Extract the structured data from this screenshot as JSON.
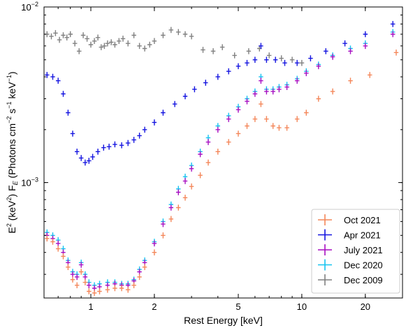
{
  "chart_data": {
    "type": "scatter",
    "title": "",
    "xlabel": "Rest Energy [keV]",
    "ylabel_parts": {
      "base1": "E",
      "sup1": "2",
      "mid1": " (keV",
      "sup2": "2",
      "mid2": ") F",
      "sub1": "E",
      "mid3": "  (Photons cm",
      "sup3": "−2",
      "mid4": " s",
      "sup4": "−1",
      "mid5": " keV",
      "sup5": "−1",
      "end": ")"
    },
    "x_scale": "log",
    "y_scale": "log",
    "xlim": [
      0.6,
      30
    ],
    "ylim": [
      0.00022,
      0.01
    ],
    "x_ticks": [
      {
        "value": 1,
        "label": "1"
      },
      {
        "value": 2,
        "label": "2"
      },
      {
        "value": 5,
        "label": "5"
      },
      {
        "value": 10,
        "label": "10"
      },
      {
        "value": 20,
        "label": "20"
      }
    ],
    "y_ticks": [
      {
        "value": 0.001,
        "label_base": "10",
        "label_exp": "−3"
      },
      {
        "value": 0.01,
        "label_base": "10",
        "label_exp": "−2"
      }
    ],
    "grid": false,
    "legend_position": "bottom-right",
    "series": [
      {
        "name": "Oct 2021",
        "color": "#f4875a",
        "points": [
          [
            0.62,
            0.00048
          ],
          [
            0.66,
            0.00046
          ],
          [
            0.7,
            0.00042
          ],
          [
            0.74,
            0.00038
          ],
          [
            0.78,
            0.00033
          ],
          [
            0.82,
            0.00028
          ],
          [
            0.86,
            0.00026
          ],
          [
            0.9,
            0.00031
          ],
          [
            0.94,
            0.00027
          ],
          [
            0.98,
            0.00024
          ],
          [
            1.04,
            0.000235
          ],
          [
            1.1,
            0.00024
          ],
          [
            1.2,
            0.000245
          ],
          [
            1.3,
            0.00025
          ],
          [
            1.4,
            0.00025
          ],
          [
            1.5,
            0.000245
          ],
          [
            1.6,
            0.00026
          ],
          [
            1.7,
            0.00029
          ],
          [
            1.8,
            0.00033
          ],
          [
            2.0,
            0.0004
          ],
          [
            2.2,
            0.0005
          ],
          [
            2.4,
            0.00062
          ],
          [
            2.6,
            0.00072
          ],
          [
            2.8,
            0.00082
          ],
          [
            3.0,
            0.00095
          ],
          [
            3.3,
            0.0011
          ],
          [
            3.6,
            0.0013
          ],
          [
            4.0,
            0.0015
          ],
          [
            4.5,
            0.0017
          ],
          [
            5.0,
            0.0019
          ],
          [
            5.5,
            0.0021
          ],
          [
            6.0,
            0.0023
          ],
          [
            6.4,
            0.0028
          ],
          [
            6.8,
            0.0023
          ],
          [
            7.3,
            0.0021
          ],
          [
            7.8,
            0.00205
          ],
          [
            8.5,
            0.00205
          ],
          [
            9.5,
            0.0023
          ],
          [
            10.5,
            0.0025
          ],
          [
            12.0,
            0.003
          ],
          [
            14.0,
            0.0033
          ],
          [
            17.0,
            0.0038
          ],
          [
            21.0,
            0.0041
          ],
          [
            28.0,
            0.0055
          ]
        ]
      },
      {
        "name": "Apr 2021",
        "color": "#1414e0",
        "points": [
          [
            0.62,
            0.0041
          ],
          [
            0.66,
            0.004
          ],
          [
            0.7,
            0.0038
          ],
          [
            0.74,
            0.0032
          ],
          [
            0.78,
            0.0025
          ],
          [
            0.82,
            0.0019
          ],
          [
            0.86,
            0.0015
          ],
          [
            0.9,
            0.00138
          ],
          [
            0.94,
            0.0013
          ],
          [
            0.98,
            0.00133
          ],
          [
            1.02,
            0.0014
          ],
          [
            1.08,
            0.0015
          ],
          [
            1.15,
            0.00158
          ],
          [
            1.22,
            0.0016
          ],
          [
            1.3,
            0.00165
          ],
          [
            1.4,
            0.00163
          ],
          [
            1.5,
            0.00168
          ],
          [
            1.6,
            0.00175
          ],
          [
            1.7,
            0.00185
          ],
          [
            1.8,
            0.002
          ],
          [
            2.0,
            0.0022
          ],
          [
            2.2,
            0.0025
          ],
          [
            2.5,
            0.0028
          ],
          [
            2.8,
            0.0031
          ],
          [
            3.1,
            0.0034
          ],
          [
            3.5,
            0.0037
          ],
          [
            4.0,
            0.004
          ],
          [
            4.5,
            0.0043
          ],
          [
            5.0,
            0.0046
          ],
          [
            5.5,
            0.0048
          ],
          [
            6.0,
            0.005
          ],
          [
            6.4,
            0.006
          ],
          [
            6.8,
            0.005
          ],
          [
            7.5,
            0.005
          ],
          [
            8.3,
            0.0048
          ],
          [
            9.5,
            0.0048
          ],
          [
            11.0,
            0.0051
          ],
          [
            13.0,
            0.0056
          ],
          [
            16.0,
            0.0062
          ],
          [
            20.0,
            0.007
          ],
          [
            27.0,
            0.008
          ]
        ]
      },
      {
        "name": "July 2021",
        "color": "#a80fc2",
        "points": [
          [
            0.62,
            0.0005
          ],
          [
            0.66,
            0.00048
          ],
          [
            0.7,
            0.00045
          ],
          [
            0.74,
            0.0004
          ],
          [
            0.78,
            0.00035
          ],
          [
            0.82,
            0.0003
          ],
          [
            0.86,
            0.00029
          ],
          [
            0.9,
            0.00034
          ],
          [
            0.94,
            0.00029
          ],
          [
            0.98,
            0.00026
          ],
          [
            1.04,
            0.00025
          ],
          [
            1.1,
            0.000255
          ],
          [
            1.2,
            0.00026
          ],
          [
            1.3,
            0.000265
          ],
          [
            1.4,
            0.00026
          ],
          [
            1.5,
            0.00026
          ],
          [
            1.6,
            0.000275
          ],
          [
            1.7,
            0.00031
          ],
          [
            1.8,
            0.00035
          ],
          [
            2.0,
            0.00045
          ],
          [
            2.2,
            0.00058
          ],
          [
            2.4,
            0.00072
          ],
          [
            2.6,
            0.00088
          ],
          [
            2.8,
            0.00102
          ],
          [
            3.0,
            0.0012
          ],
          [
            3.3,
            0.00145
          ],
          [
            3.6,
            0.0017
          ],
          [
            4.0,
            0.002
          ],
          [
            4.5,
            0.0023
          ],
          [
            5.0,
            0.0026
          ],
          [
            5.5,
            0.0029
          ],
          [
            6.0,
            0.0032
          ],
          [
            6.4,
            0.0038
          ],
          [
            6.8,
            0.0033
          ],
          [
            7.3,
            0.0033
          ],
          [
            7.8,
            0.0034
          ],
          [
            8.5,
            0.0035
          ],
          [
            9.5,
            0.0038
          ],
          [
            10.5,
            0.0042
          ],
          [
            12.0,
            0.0046
          ],
          [
            14.0,
            0.0052
          ],
          [
            17.0,
            0.0056
          ],
          [
            20.0,
            0.006
          ],
          [
            27.0,
            0.007
          ]
        ]
      },
      {
        "name": "Dec 2020",
        "color": "#14c3f0",
        "points": [
          [
            0.62,
            0.00052
          ],
          [
            0.66,
            0.0005
          ],
          [
            0.7,
            0.00047
          ],
          [
            0.74,
            0.00042
          ],
          [
            0.78,
            0.00036
          ],
          [
            0.82,
            0.00031
          ],
          [
            0.86,
            0.0003
          ],
          [
            0.9,
            0.00035
          ],
          [
            0.94,
            0.0003
          ],
          [
            0.98,
            0.00027
          ],
          [
            1.04,
            0.00026
          ],
          [
            1.1,
            0.000265
          ],
          [
            1.2,
            0.00027
          ],
          [
            1.3,
            0.00027
          ],
          [
            1.4,
            0.000265
          ],
          [
            1.5,
            0.000265
          ],
          [
            1.6,
            0.00028
          ],
          [
            1.7,
            0.00032
          ],
          [
            1.8,
            0.00036
          ],
          [
            2.0,
            0.00046
          ],
          [
            2.2,
            0.0006
          ],
          [
            2.4,
            0.00075
          ],
          [
            2.6,
            0.00092
          ],
          [
            2.8,
            0.00108
          ],
          [
            3.0,
            0.00125
          ],
          [
            3.3,
            0.0015
          ],
          [
            3.6,
            0.0018
          ],
          [
            4.0,
            0.0021
          ],
          [
            4.5,
            0.0024
          ],
          [
            5.0,
            0.0027
          ],
          [
            5.5,
            0.003
          ],
          [
            6.0,
            0.0033
          ],
          [
            6.4,
            0.004
          ],
          [
            6.8,
            0.0034
          ],
          [
            7.3,
            0.0034
          ],
          [
            7.8,
            0.0035
          ],
          [
            8.5,
            0.0036
          ],
          [
            9.5,
            0.0039
          ],
          [
            10.5,
            0.0043
          ],
          [
            12.0,
            0.0047
          ],
          [
            14.0,
            0.0053
          ],
          [
            17.0,
            0.0058
          ],
          [
            20.0,
            0.0062
          ],
          [
            27.0,
            0.0072
          ]
        ]
      },
      {
        "name": "Dec 2009",
        "color": "#808080",
        "points": [
          [
            0.62,
            0.007
          ],
          [
            0.65,
            0.0068
          ],
          [
            0.68,
            0.0071
          ],
          [
            0.71,
            0.0065
          ],
          [
            0.74,
            0.0069
          ],
          [
            0.77,
            0.0067
          ],
          [
            0.8,
            0.007
          ],
          [
            0.84,
            0.0062
          ],
          [
            0.88,
            0.0056
          ],
          [
            0.92,
            0.0069
          ],
          [
            0.96,
            0.0066
          ],
          [
            1.0,
            0.0061
          ],
          [
            1.04,
            0.0064
          ],
          [
            1.08,
            0.0067
          ],
          [
            1.12,
            0.0059
          ],
          [
            1.16,
            0.006
          ],
          [
            1.2,
            0.0062
          ],
          [
            1.25,
            0.0063
          ],
          [
            1.3,
            0.0061
          ],
          [
            1.36,
            0.0064
          ],
          [
            1.42,
            0.0066
          ],
          [
            1.5,
            0.0062
          ],
          [
            1.6,
            0.0069
          ],
          [
            1.7,
            0.006
          ],
          [
            1.8,
            0.0058
          ],
          [
            1.9,
            0.0061
          ],
          [
            2.0,
            0.0064
          ],
          [
            2.2,
            0.0069
          ],
          [
            2.4,
            0.0074
          ],
          [
            2.6,
            0.0072
          ],
          [
            2.8,
            0.007
          ],
          [
            3.0,
            0.0068
          ],
          [
            3.4,
            0.0057
          ],
          [
            3.8,
            0.0056
          ],
          [
            4.2,
            0.0059
          ],
          [
            4.8,
            0.0053
          ],
          [
            5.6,
            0.0056
          ],
          [
            6.3,
            0.0058
          ],
          [
            7.0,
            0.0053
          ],
          [
            8.0,
            0.0051
          ],
          [
            9.0,
            0.005
          ],
          [
            10.0,
            0.0048
          ]
        ]
      }
    ]
  }
}
